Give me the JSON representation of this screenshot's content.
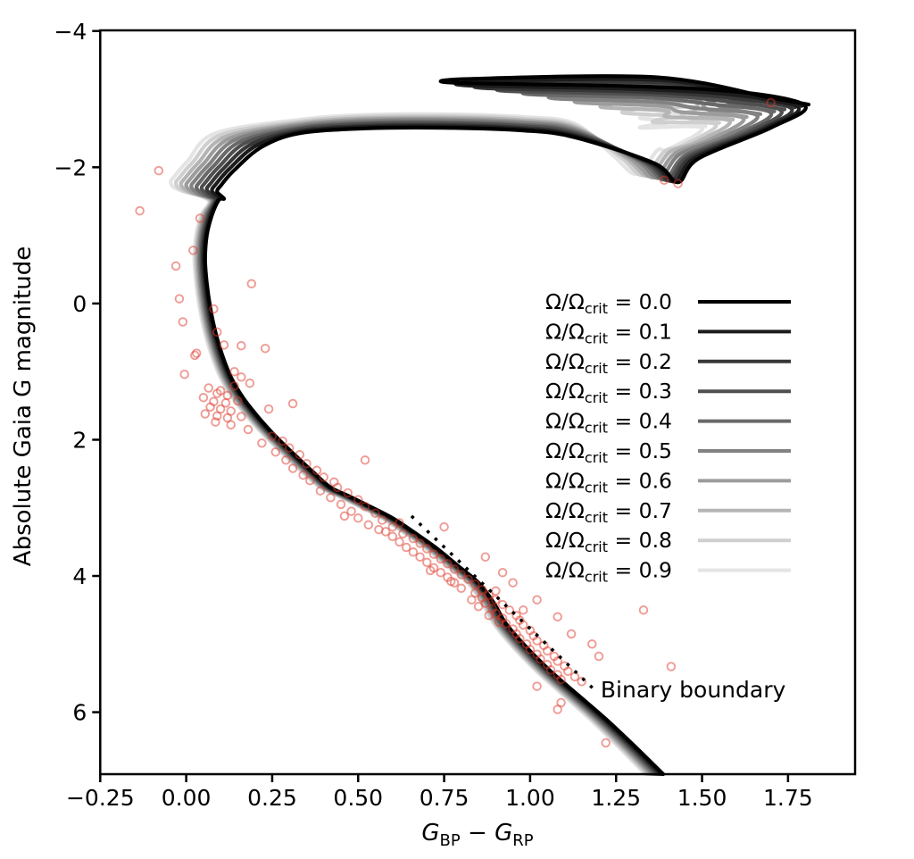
{
  "chart_data": {
    "type": "scatter",
    "title": "",
    "ylabel": "Absolute Gaia G magnitude",
    "xlabel_parts": {
      "var1": "G",
      "sub1": "BP",
      "operator": "−",
      "var2": "G",
      "sub2": "RP"
    },
    "xlim": [
      -0.25,
      1.945
    ],
    "ylim": [
      6.91,
      -4.01
    ],
    "y_axis_inverted": true,
    "grid": false,
    "x_ticks": [
      -0.25,
      0.0,
      0.25,
      0.5,
      0.75,
      1.0,
      1.25,
      1.5,
      1.75
    ],
    "x_tick_labels": [
      "−0.25",
      "0.00",
      "0.25",
      "0.50",
      "0.75",
      "1.00",
      "1.25",
      "1.50",
      "1.75"
    ],
    "y_ticks": [
      -4,
      -2,
      0,
      2,
      4,
      6
    ],
    "y_tick_labels": [
      "−4",
      "−2",
      "0",
      "2",
      "4",
      "6"
    ],
    "legend": {
      "position": "center-right",
      "entries": [
        {
          "prefix": "Ω/Ω",
          "subscript": "crit",
          "equals": " = ",
          "value": "0.0",
          "line_color": "#000000"
        },
        {
          "prefix": "Ω/Ω",
          "subscript": "crit",
          "equals": " = ",
          "value": "0.1",
          "line_color": "#1c1c1c"
        },
        {
          "prefix": "Ω/Ω",
          "subscript": "crit",
          "equals": " = ",
          "value": "0.2",
          "line_color": "#373737"
        },
        {
          "prefix": "Ω/Ω",
          "subscript": "crit",
          "equals": " = ",
          "value": "0.3",
          "line_color": "#4f4f4f"
        },
        {
          "prefix": "Ω/Ω",
          "subscript": "crit",
          "equals": " = ",
          "value": "0.4",
          "line_color": "#696969"
        },
        {
          "prefix": "Ω/Ω",
          "subscript": "crit",
          "equals": " = ",
          "value": "0.5",
          "line_color": "#828282"
        },
        {
          "prefix": "Ω/Ω",
          "subscript": "crit",
          "equals": " = ",
          "value": "0.6",
          "line_color": "#9c9c9c"
        },
        {
          "prefix": "Ω/Ω",
          "subscript": "crit",
          "equals": " = ",
          "value": "0.7",
          "line_color": "#b5b5b5"
        },
        {
          "prefix": "Ω/Ω",
          "subscript": "crit",
          "equals": " = ",
          "value": "0.8",
          "line_color": "#cfcfcf"
        },
        {
          "prefix": "Ω/Ω",
          "subscript": "crit",
          "equals": " = ",
          "value": "0.9",
          "line_color": "#e4e4e4"
        }
      ]
    },
    "isochrones": {
      "ms_ridge": [
        [
          1.387,
          6.91
        ],
        [
          1.3,
          6.48
        ],
        [
          1.22,
          6.1
        ],
        [
          1.14,
          5.75
        ],
        [
          1.06,
          5.4
        ],
        [
          0.99,
          5.05
        ],
        [
          0.93,
          4.7
        ],
        [
          0.895,
          4.4
        ],
        [
          0.85,
          4.1
        ],
        [
          0.79,
          3.85
        ],
        [
          0.73,
          3.6
        ],
        [
          0.66,
          3.35
        ],
        [
          0.6,
          3.15
        ],
        [
          0.53,
          2.97
        ],
        [
          0.47,
          2.82
        ],
        [
          0.42,
          2.7
        ],
        [
          0.37,
          2.48
        ],
        [
          0.315,
          2.22
        ],
        [
          0.26,
          1.95
        ],
        [
          0.21,
          1.67
        ],
        [
          0.165,
          1.38
        ],
        [
          0.13,
          1.08
        ],
        [
          0.105,
          0.76
        ],
        [
          0.085,
          0.42
        ],
        [
          0.07,
          0.06
        ],
        [
          0.06,
          -0.3
        ],
        [
          0.055,
          -0.65
        ],
        [
          0.06,
          -1.0
        ],
        [
          0.075,
          -1.3
        ],
        [
          0.095,
          -1.52
        ]
      ],
      "series": [
        {
          "label": "Ω/Ωcrit = 0.0",
          "color": "#000000",
          "hook": [
            0.09,
            -1.64
          ],
          "sgb_mag": -2.58,
          "rgb_base": [
            1.43,
            -1.78
          ],
          "tip": [
            1.8,
            -2.9
          ],
          "loop_end": [
            0.78,
            -3.24
          ]
        },
        {
          "label": "Ω/Ωcrit = 0.1",
          "color": "#1c1c1c",
          "hook": [
            0.075,
            -1.655
          ],
          "sgb_mag": -2.6,
          "rgb_base": [
            1.42,
            -1.79
          ],
          "tip": [
            1.78,
            -2.88
          ],
          "loop_end": [
            0.82,
            -3.2
          ]
        },
        {
          "label": "Ω/Ωcrit = 0.2",
          "color": "#373737",
          "hook": [
            0.06,
            -1.67
          ],
          "sgb_mag": -2.62,
          "rgb_base": [
            1.41,
            -1.8
          ],
          "tip": [
            1.76,
            -2.86
          ],
          "loop_end": [
            0.87,
            -3.16
          ]
        },
        {
          "label": "Ω/Ωcrit = 0.3",
          "color": "#4f4f4f",
          "hook": [
            0.045,
            -1.685
          ],
          "sgb_mag": -2.645,
          "rgb_base": [
            1.4,
            -1.81
          ],
          "tip": [
            1.73,
            -2.83
          ],
          "loop_end": [
            0.93,
            -3.12
          ]
        },
        {
          "label": "Ω/Ωcrit = 0.4",
          "color": "#696969",
          "hook": [
            0.03,
            -1.7
          ],
          "sgb_mag": -2.665,
          "rgb_base": [
            1.39,
            -1.82
          ],
          "tip": [
            1.7,
            -2.8
          ],
          "loop_end": [
            1.0,
            -3.07
          ]
        },
        {
          "label": "Ω/Ωcrit = 0.5",
          "color": "#828282",
          "hook": [
            0.015,
            -1.715
          ],
          "sgb_mag": -2.69,
          "rgb_base": [
            1.375,
            -1.84
          ],
          "tip": [
            1.66,
            -2.76
          ],
          "loop_end": [
            1.07,
            -3.01
          ]
        },
        {
          "label": "Ω/Ωcrit = 0.6",
          "color": "#9c9c9c",
          "hook": [
            0.0,
            -1.73
          ],
          "sgb_mag": -2.71,
          "rgb_base": [
            1.36,
            -1.85
          ],
          "tip": [
            1.62,
            -2.72
          ],
          "loop_end": [
            1.14,
            -2.95
          ]
        },
        {
          "label": "Ω/Ωcrit = 0.7",
          "color": "#b5b5b5",
          "hook": [
            -0.015,
            -1.745
          ],
          "sgb_mag": -2.73,
          "rgb_base": [
            1.345,
            -1.87
          ],
          "tip": [
            1.58,
            -2.68
          ],
          "loop_end": [
            1.21,
            -2.88
          ]
        },
        {
          "label": "Ω/Ωcrit = 0.8",
          "color": "#cfcfcf",
          "hook": [
            -0.03,
            -1.76
          ],
          "sgb_mag": -2.755,
          "rgb_base": [
            1.33,
            -1.88
          ],
          "tip": [
            1.54,
            -2.63
          ],
          "loop_end": [
            1.27,
            -2.8
          ]
        },
        {
          "label": "Ω/Ωcrit = 0.9",
          "color": "#e4e4e4",
          "hook": [
            -0.045,
            -1.775
          ],
          "sgb_mag": -2.78,
          "rgb_base": [
            1.31,
            -1.9
          ],
          "tip": [
            1.5,
            -2.58
          ],
          "loop_end": [
            1.32,
            -2.72
          ]
        }
      ]
    },
    "binary_boundary": {
      "label": "Binary boundary",
      "start": [
        0.655,
        3.12
      ],
      "end": [
        1.185,
        5.66
      ],
      "style": "dotted",
      "color": "#000000",
      "label_anchor": [
        1.205,
        5.78
      ]
    },
    "observed_stars": {
      "marker": "open-circle",
      "color": "#e0392b",
      "opacity": 0.5,
      "radius_px": 4.3,
      "points": [
        [
          -0.08,
          -1.95
        ],
        [
          -0.135,
          -1.36
        ],
        [
          0.04,
          -1.25
        ],
        [
          0.02,
          -0.78
        ],
        [
          -0.03,
          -0.55
        ],
        [
          0.19,
          -0.29
        ],
        [
          -0.02,
          -0.07
        ],
        [
          0.08,
          0.08
        ],
        [
          -0.01,
          0.27
        ],
        [
          0.09,
          0.42
        ],
        [
          0.11,
          0.61
        ],
        [
          0.16,
          0.62
        ],
        [
          0.23,
          0.66
        ],
        [
          0.03,
          0.73
        ],
        [
          0.025,
          0.76
        ],
        [
          -0.005,
          1.04
        ],
        [
          0.14,
          1.0
        ],
        [
          0.16,
          1.08
        ],
        [
          0.185,
          1.17
        ],
        [
          0.1,
          1.28
        ],
        [
          0.14,
          1.21
        ],
        [
          0.065,
          1.24
        ],
        [
          0.09,
          1.32
        ],
        [
          0.12,
          1.35
        ],
        [
          0.05,
          1.38
        ],
        [
          0.08,
          1.44
        ],
        [
          0.115,
          1.46
        ],
        [
          0.15,
          1.43
        ],
        [
          0.07,
          1.52
        ],
        [
          0.1,
          1.55
        ],
        [
          0.13,
          1.58
        ],
        [
          0.055,
          1.62
        ],
        [
          0.09,
          1.65
        ],
        [
          0.12,
          1.68
        ],
        [
          0.16,
          1.66
        ],
        [
          0.085,
          1.74
        ],
        [
          0.13,
          1.78
        ],
        [
          0.18,
          1.85
        ],
        [
          0.31,
          1.47
        ],
        [
          0.24,
          1.55
        ],
        [
          0.25,
          1.95
        ],
        [
          0.28,
          2.02
        ],
        [
          0.22,
          2.05
        ],
        [
          0.3,
          2.12
        ],
        [
          0.26,
          2.18
        ],
        [
          0.33,
          2.22
        ],
        [
          0.29,
          2.3
        ],
        [
          0.35,
          2.35
        ],
        [
          0.31,
          2.42
        ],
        [
          0.38,
          2.45
        ],
        [
          0.34,
          2.52
        ],
        [
          0.4,
          2.55
        ],
        [
          0.36,
          2.6
        ],
        [
          0.43,
          2.62
        ],
        [
          0.52,
          2.3
        ],
        [
          0.44,
          2.7
        ],
        [
          0.39,
          2.75
        ],
        [
          0.47,
          2.78
        ],
        [
          0.42,
          2.85
        ],
        [
          0.5,
          2.88
        ],
        [
          0.45,
          2.95
        ],
        [
          0.52,
          2.98
        ],
        [
          0.48,
          3.05
        ],
        [
          0.55,
          3.08
        ],
        [
          0.5,
          3.15
        ],
        [
          0.57,
          3.18
        ],
        [
          0.53,
          3.25
        ],
        [
          0.6,
          3.28
        ],
        [
          0.56,
          3.32
        ],
        [
          0.62,
          3.22
        ],
        [
          0.46,
          3.12
        ],
        [
          0.58,
          3.35
        ],
        [
          0.63,
          3.38
        ],
        [
          0.6,
          3.42
        ],
        [
          0.66,
          3.45
        ],
        [
          0.62,
          3.5
        ],
        [
          0.68,
          3.52
        ],
        [
          0.64,
          3.58
        ],
        [
          0.7,
          3.6
        ],
        [
          0.66,
          3.65
        ],
        [
          0.72,
          3.68
        ],
        [
          0.68,
          3.72
        ],
        [
          0.74,
          3.75
        ],
        [
          0.7,
          3.8
        ],
        [
          0.76,
          3.82
        ],
        [
          0.72,
          3.88
        ],
        [
          0.78,
          3.9
        ],
        [
          0.74,
          3.95
        ],
        [
          0.8,
          3.98
        ],
        [
          0.76,
          4.02
        ],
        [
          0.82,
          4.05
        ],
        [
          0.78,
          4.1
        ],
        [
          0.84,
          4.12
        ],
        [
          0.8,
          4.18
        ],
        [
          0.86,
          4.2
        ],
        [
          0.77,
          4.08
        ],
        [
          0.71,
          3.92
        ],
        [
          0.84,
          4.25
        ],
        [
          0.88,
          4.28
        ],
        [
          0.86,
          4.32
        ],
        [
          0.9,
          4.35
        ],
        [
          0.87,
          4.4
        ],
        [
          0.92,
          4.42
        ],
        [
          0.89,
          4.48
        ],
        [
          0.94,
          4.5
        ],
        [
          0.9,
          4.55
        ],
        [
          0.96,
          4.58
        ],
        [
          0.92,
          4.62
        ],
        [
          0.97,
          4.65
        ],
        [
          0.93,
          4.7
        ],
        [
          0.98,
          4.72
        ],
        [
          0.95,
          4.78
        ],
        [
          1.0,
          4.8
        ],
        [
          0.96,
          4.85
        ],
        [
          1.01,
          4.88
        ],
        [
          0.97,
          4.92
        ],
        [
          1.02,
          4.95
        ],
        [
          0.99,
          5.0
        ],
        [
          1.04,
          5.02
        ],
        [
          0.85,
          4.45
        ],
        [
          0.83,
          4.35
        ],
        [
          0.91,
          4.68
        ],
        [
          0.88,
          4.58
        ],
        [
          1.0,
          5.08
        ],
        [
          1.05,
          5.1
        ],
        [
          1.02,
          5.15
        ],
        [
          1.07,
          5.18
        ],
        [
          1.03,
          5.22
        ],
        [
          1.08,
          5.25
        ],
        [
          1.05,
          5.3
        ],
        [
          1.1,
          5.32
        ],
        [
          1.06,
          5.38
        ],
        [
          1.11,
          5.4
        ],
        [
          1.08,
          5.45
        ],
        [
          1.13,
          5.48
        ],
        [
          1.09,
          5.52
        ],
        [
          1.15,
          5.55
        ],
        [
          0.75,
          3.28
        ],
        [
          0.87,
          3.72
        ],
        [
          0.92,
          3.95
        ],
        [
          0.95,
          4.1
        ],
        [
          1.02,
          4.35
        ],
        [
          0.98,
          4.5
        ],
        [
          1.08,
          4.6
        ],
        [
          1.12,
          4.85
        ],
        [
          1.18,
          5.0
        ],
        [
          0.9,
          4.22
        ],
        [
          1.2,
          5.18
        ],
        [
          1.41,
          5.33
        ],
        [
          1.33,
          4.5
        ],
        [
          1.02,
          5.62
        ],
        [
          1.09,
          5.86
        ],
        [
          1.08,
          5.96
        ],
        [
          1.22,
          6.45
        ],
        [
          1.39,
          -1.81
        ],
        [
          1.43,
          -1.76
        ],
        [
          1.7,
          -2.95
        ]
      ]
    }
  }
}
